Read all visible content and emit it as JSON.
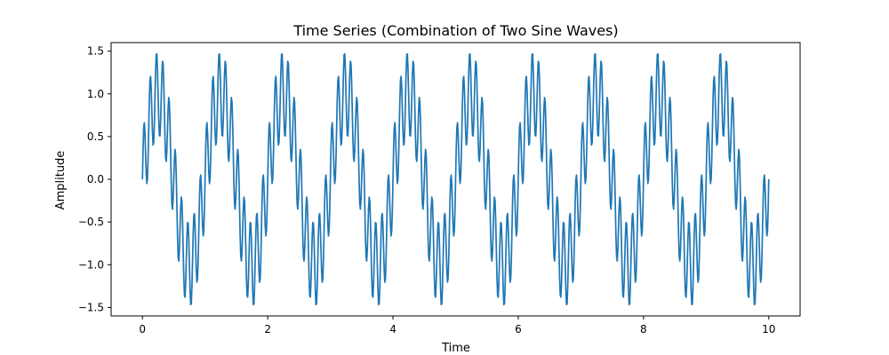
{
  "chart_data": {
    "type": "line",
    "title": "Time Series (Combination of Two Sine Waves)",
    "xlabel": "Time",
    "ylabel": "Amplitude",
    "xlim": [
      -0.5,
      10.5
    ],
    "ylim": [
      -1.6,
      1.6
    ],
    "x_ticks": [
      0,
      2,
      4,
      6,
      8,
      10
    ],
    "x_tick_labels": [
      "0",
      "2",
      "4",
      "6",
      "8",
      "10"
    ],
    "y_ticks": [
      -1.5,
      -1.0,
      -0.5,
      0.0,
      0.5,
      1.0,
      1.5
    ],
    "y_tick_labels": [
      "−1.5",
      "−1.0",
      "−0.5",
      "0.0",
      "0.5",
      "1.0",
      "1.5"
    ],
    "grid": false,
    "legend": false,
    "series": [
      {
        "color": "#1f77b4",
        "x_range": [
          0,
          10
        ],
        "components": [
          {
            "amplitude": 1.0,
            "frequency": 1,
            "phase": 0
          },
          {
            "amplitude": 0.5,
            "frequency": 10,
            "phase": 0
          }
        ],
        "sample_count": 1000
      }
    ]
  }
}
